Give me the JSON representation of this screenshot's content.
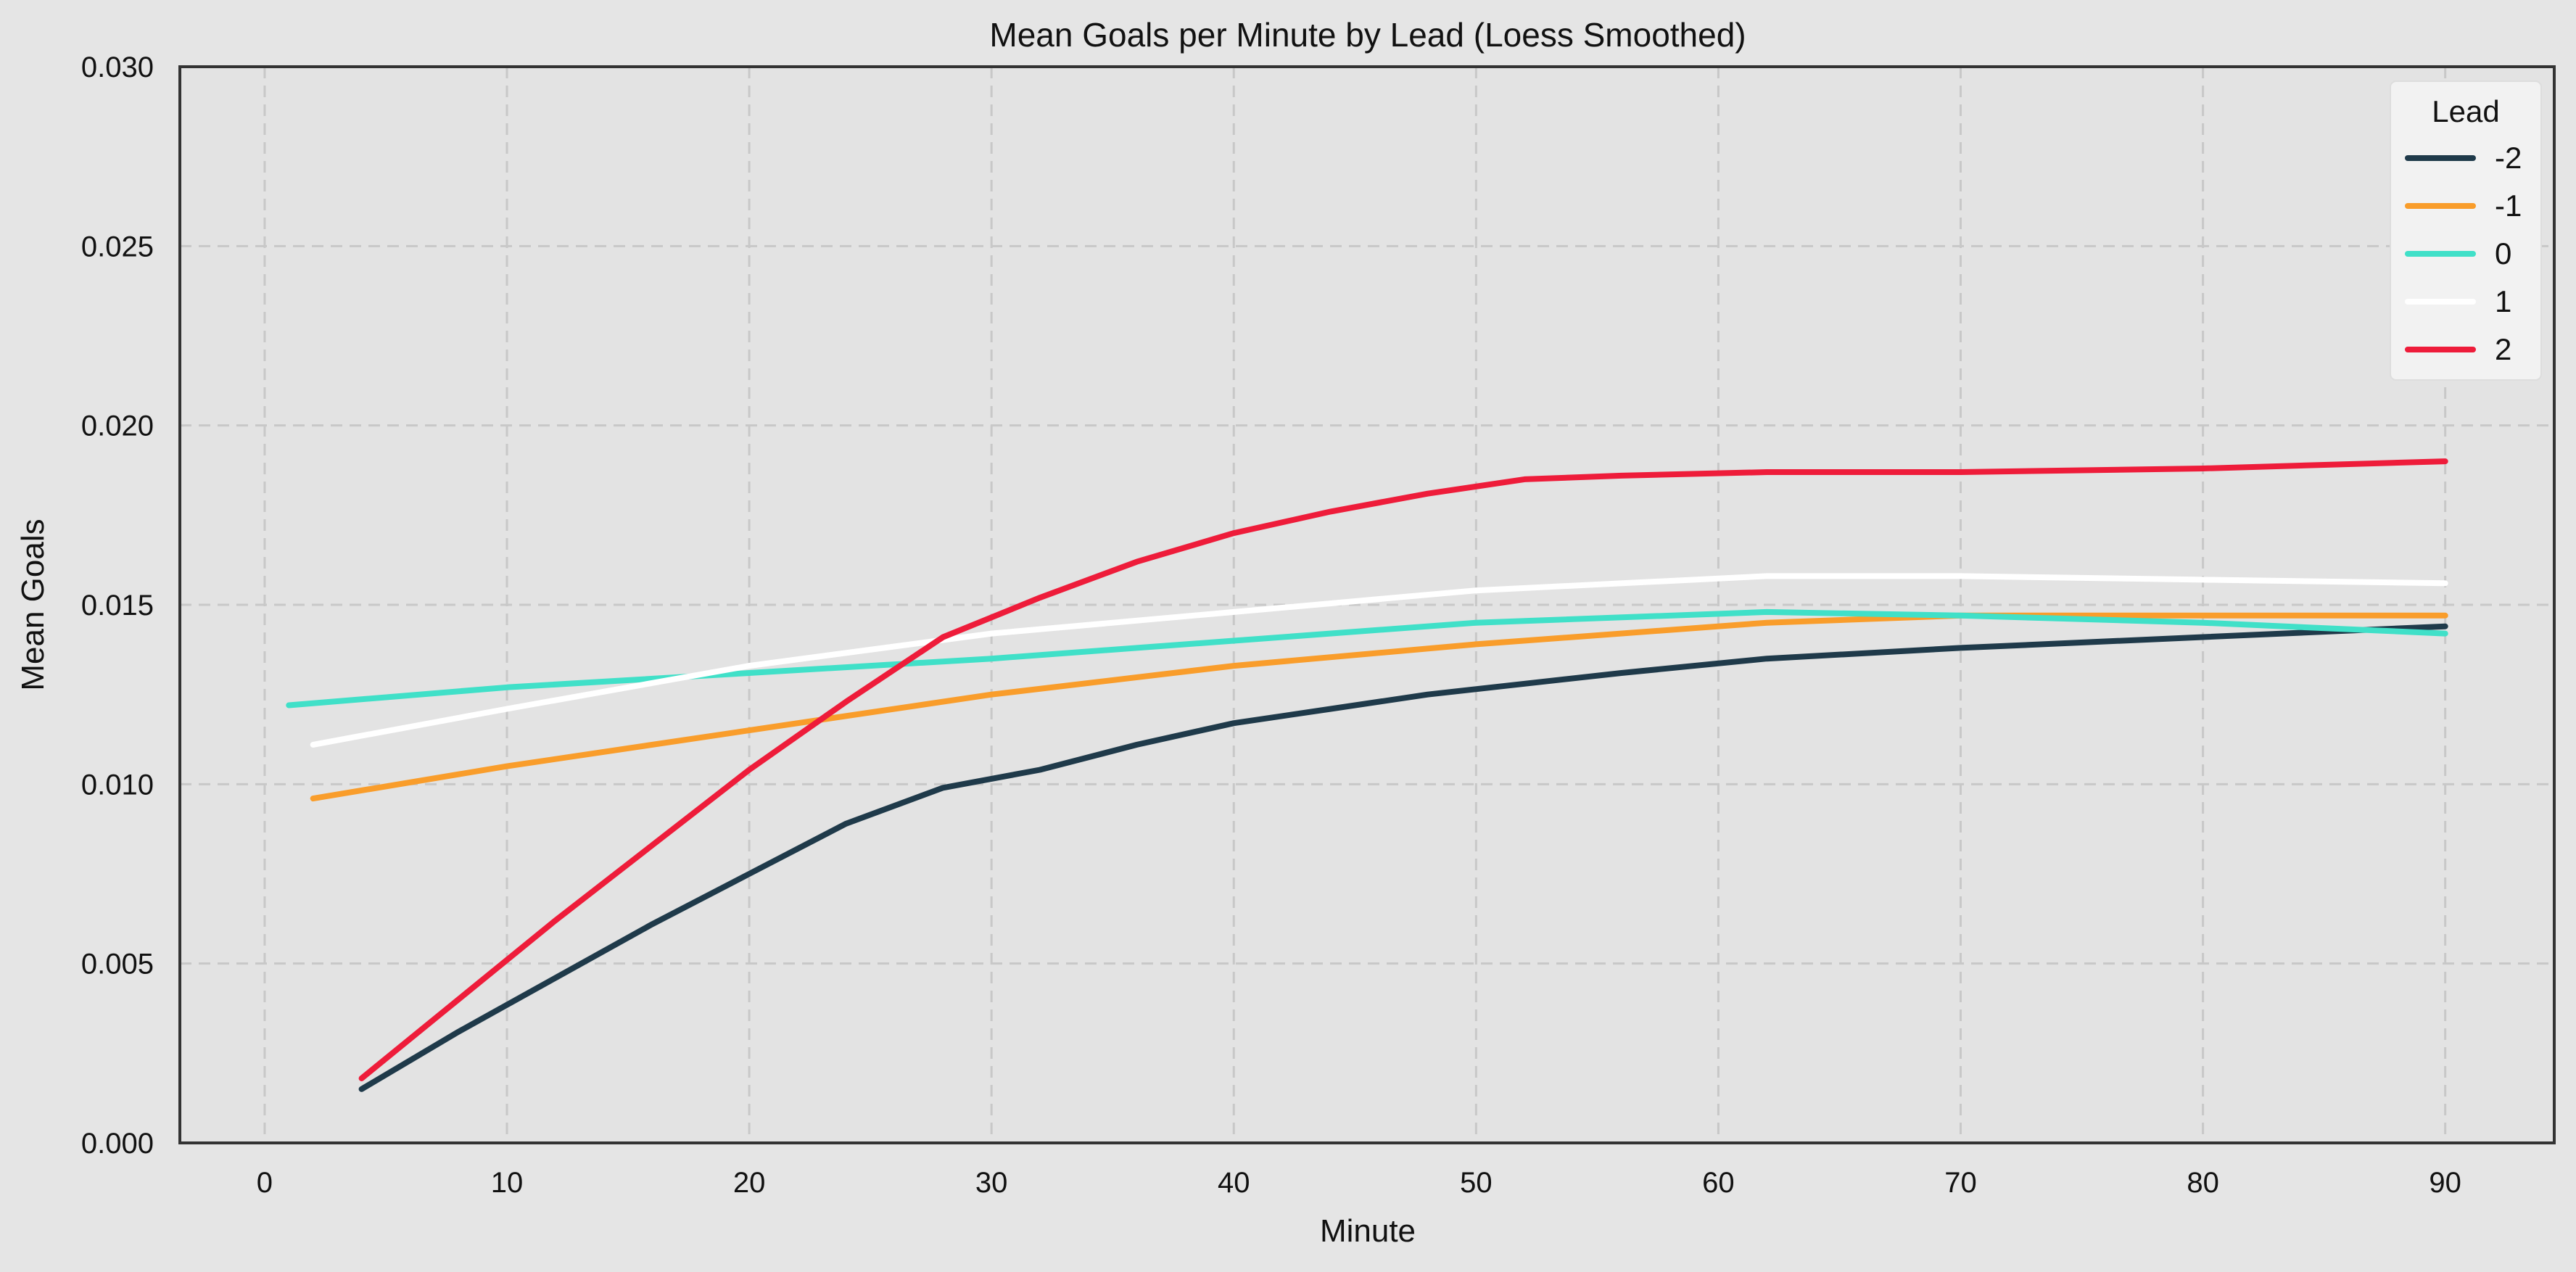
{
  "chart_data": {
    "type": "line",
    "title": "Mean Goals per Minute by Lead (Loess Smoothed)",
    "xlabel": "Minute",
    "ylabel": "Mean Goals",
    "xlim": [
      -3.5,
      94.5
    ],
    "ylim": [
      0,
      0.03
    ],
    "xticks": [
      0,
      10,
      20,
      30,
      40,
      50,
      60,
      70,
      80,
      90
    ],
    "yticks": [
      0,
      0.005,
      0.01,
      0.015,
      0.02,
      0.025,
      0.03
    ],
    "ytick_labels": [
      "0.000",
      "0.005",
      "0.010",
      "0.015",
      "0.020",
      "0.025",
      "0.030"
    ],
    "grid": true,
    "legend": {
      "title": "Lead",
      "position": "top-right"
    },
    "series": [
      {
        "name": "-2",
        "color": "#1f3a4a",
        "x": [
          4,
          8,
          12,
          16,
          20,
          24,
          28,
          32,
          36,
          40,
          44,
          48,
          52,
          56,
          62,
          70,
          80,
          90
        ],
        "y": [
          0.0015,
          0.0031,
          0.0046,
          0.0061,
          0.0075,
          0.0089,
          0.0099,
          0.0104,
          0.0111,
          0.0117,
          0.0121,
          0.0125,
          0.0128,
          0.0131,
          0.0135,
          0.0138,
          0.0141,
          0.0144
        ]
      },
      {
        "name": "-1",
        "color": "#f99d2b",
        "x": [
          2,
          10,
          20,
          30,
          40,
          50,
          62,
          70,
          80,
          90
        ],
        "y": [
          0.0096,
          0.0105,
          0.0115,
          0.0125,
          0.0133,
          0.0139,
          0.0145,
          0.0147,
          0.0147,
          0.0147
        ]
      },
      {
        "name": "0",
        "color": "#40e0c8",
        "x": [
          1,
          10,
          20,
          30,
          40,
          50,
          62,
          70,
          80,
          90
        ],
        "y": [
          0.0122,
          0.0127,
          0.0131,
          0.0135,
          0.014,
          0.0145,
          0.0148,
          0.0147,
          0.0145,
          0.0142
        ]
      },
      {
        "name": "1",
        "color": "#ffffff",
        "x": [
          2,
          10,
          20,
          30,
          40,
          50,
          62,
          70,
          80,
          90
        ],
        "y": [
          0.0111,
          0.0121,
          0.0133,
          0.0142,
          0.0148,
          0.0154,
          0.0158,
          0.0158,
          0.0157,
          0.0156
        ]
      },
      {
        "name": "2",
        "color": "#ee1c3a",
        "x": [
          4,
          8,
          12,
          16,
          20,
          24,
          28,
          32,
          36,
          40,
          44,
          48,
          52,
          56,
          62,
          70,
          80,
          90
        ],
        "y": [
          0.0018,
          0.004,
          0.0062,
          0.0083,
          0.0104,
          0.0123,
          0.0141,
          0.0152,
          0.0162,
          0.017,
          0.0176,
          0.0181,
          0.0185,
          0.0186,
          0.0187,
          0.0187,
          0.0188,
          0.019
        ]
      }
    ]
  }
}
